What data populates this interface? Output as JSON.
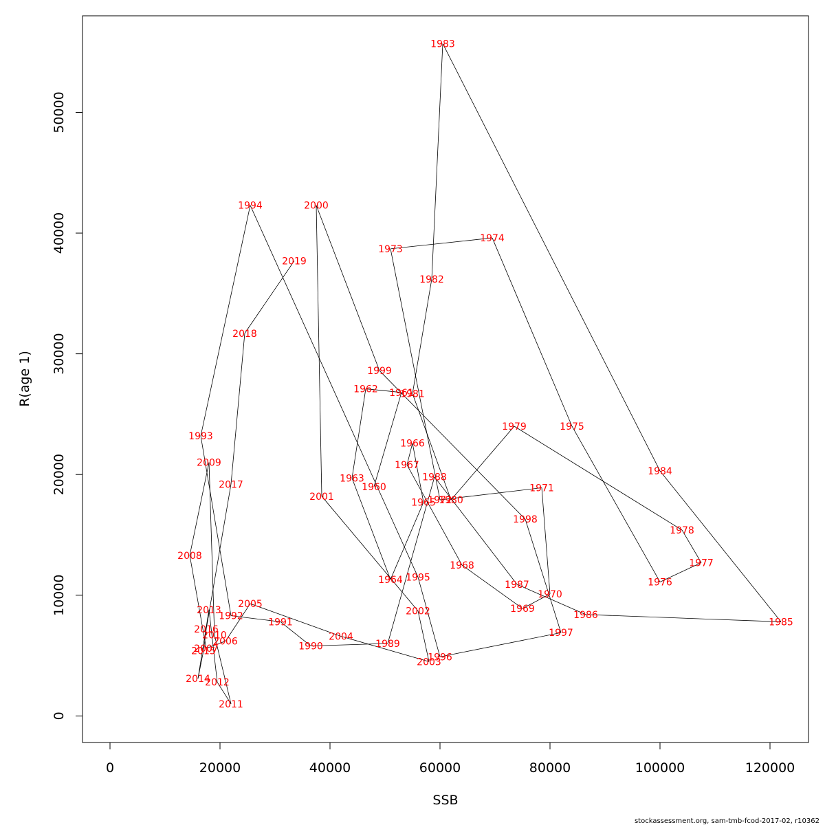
{
  "chart_data": {
    "type": "line",
    "xlabel": "SSB",
    "ylabel": "R(age 1)",
    "xlim": [
      -5000,
      127000
    ],
    "ylim": [
      -2200,
      58000
    ],
    "x_ticks": [
      0,
      20000,
      40000,
      60000,
      80000,
      100000,
      120000
    ],
    "y_ticks": [
      0,
      10000,
      20000,
      30000,
      40000,
      50000
    ],
    "x_tick_labels": [
      "0",
      "20000",
      "40000",
      "60000",
      "80000",
      "100000",
      "120000"
    ],
    "y_tick_labels": [
      "0",
      "10000",
      "20000",
      "30000",
      "40000",
      "50000"
    ],
    "line_color": "#000000",
    "label_color": "#ff0000",
    "grid": false,
    "points": [
      {
        "year": "1960",
        "ssb": 48000,
        "r": 19000
      },
      {
        "year": "1961",
        "ssb": 53000,
        "r": 26800
      },
      {
        "year": "1962",
        "ssb": 46500,
        "r": 27100
      },
      {
        "year": "1963",
        "ssb": 44000,
        "r": 19700
      },
      {
        "year": "1964",
        "ssb": 51000,
        "r": 11300
      },
      {
        "year": "1965",
        "ssb": 57000,
        "r": 17700
      },
      {
        "year": "1966",
        "ssb": 55000,
        "r": 22600
      },
      {
        "year": "1967",
        "ssb": 54000,
        "r": 20800
      },
      {
        "year": "1968",
        "ssb": 64000,
        "r": 12500
      },
      {
        "year": "1969",
        "ssb": 75000,
        "r": 8900
      },
      {
        "year": "1970",
        "ssb": 80000,
        "r": 10100
      },
      {
        "year": "1971",
        "ssb": 78500,
        "r": 18900
      },
      {
        "year": "1972",
        "ssb": 60000,
        "r": 17900
      },
      {
        "year": "1973",
        "ssb": 51000,
        "r": 38700
      },
      {
        "year": "1974",
        "ssb": 69500,
        "r": 39600
      },
      {
        "year": "1975",
        "ssb": 84000,
        "r": 24000
      },
      {
        "year": "1976",
        "ssb": 100000,
        "r": 11100
      },
      {
        "year": "1977",
        "ssb": 107500,
        "r": 12700
      },
      {
        "year": "1978",
        "ssb": 104000,
        "r": 15400
      },
      {
        "year": "1979",
        "ssb": 73500,
        "r": 24000
      },
      {
        "year": "1980",
        "ssb": 62000,
        "r": 17900
      },
      {
        "year": "1981",
        "ssb": 55000,
        "r": 26700
      },
      {
        "year": "1982",
        "ssb": 58500,
        "r": 36200
      },
      {
        "year": "1983",
        "ssb": 60500,
        "r": 55700
      },
      {
        "year": "1984",
        "ssb": 100000,
        "r": 20300
      },
      {
        "year": "1985",
        "ssb": 122000,
        "r": 7800
      },
      {
        "year": "1986",
        "ssb": 86500,
        "r": 8400
      },
      {
        "year": "1987",
        "ssb": 74000,
        "r": 10900
      },
      {
        "year": "1988",
        "ssb": 59000,
        "r": 19800
      },
      {
        "year": "1989",
        "ssb": 50500,
        "r": 6000
      },
      {
        "year": "1990",
        "ssb": 36500,
        "r": 5800
      },
      {
        "year": "1991",
        "ssb": 31000,
        "r": 7800
      },
      {
        "year": "1992",
        "ssb": 22000,
        "r": 8300
      },
      {
        "year": "1993",
        "ssb": 16500,
        "r": 23200
      },
      {
        "year": "1994",
        "ssb": 25500,
        "r": 42300
      },
      {
        "year": "1995",
        "ssb": 56000,
        "r": 11500
      },
      {
        "year": "1996",
        "ssb": 60000,
        "r": 4900
      },
      {
        "year": "1997",
        "ssb": 82000,
        "r": 6900
      },
      {
        "year": "1998",
        "ssb": 75500,
        "r": 16300
      },
      {
        "year": "1999",
        "ssb": 49000,
        "r": 28600
      },
      {
        "year": "2000",
        "ssb": 37500,
        "r": 42300
      },
      {
        "year": "2001",
        "ssb": 38500,
        "r": 18200
      },
      {
        "year": "2002",
        "ssb": 56000,
        "r": 8700
      },
      {
        "year": "2003",
        "ssb": 58000,
        "r": 4500
      },
      {
        "year": "2004",
        "ssb": 42000,
        "r": 6600
      },
      {
        "year": "2005",
        "ssb": 25500,
        "r": 9300
      },
      {
        "year": "2006",
        "ssb": 21000,
        "r": 6200
      },
      {
        "year": "2007",
        "ssb": 17500,
        "r": 5600
      },
      {
        "year": "2008",
        "ssb": 14500,
        "r": 13300
      },
      {
        "year": "2009",
        "ssb": 18000,
        "r": 21000
      },
      {
        "year": "2010",
        "ssb": 19000,
        "r": 6700
      },
      {
        "year": "2011",
        "ssb": 22000,
        "r": 1000
      },
      {
        "year": "2012",
        "ssb": 19500,
        "r": 2800
      },
      {
        "year": "2013",
        "ssb": 18000,
        "r": 8800
      },
      {
        "year": "2014",
        "ssb": 16000,
        "r": 3100
      },
      {
        "year": "2015",
        "ssb": 17000,
        "r": 5400
      },
      {
        "year": "2016",
        "ssb": 17500,
        "r": 7200
      },
      {
        "year": "2017",
        "ssb": 22000,
        "r": 19200
      },
      {
        "year": "2018",
        "ssb": 24500,
        "r": 31700
      },
      {
        "year": "2019",
        "ssb": 33500,
        "r": 37700
      }
    ]
  },
  "footer": {
    "credit": "stockassessment.org, sam-tmb-fcod-2017-02, r10362"
  }
}
